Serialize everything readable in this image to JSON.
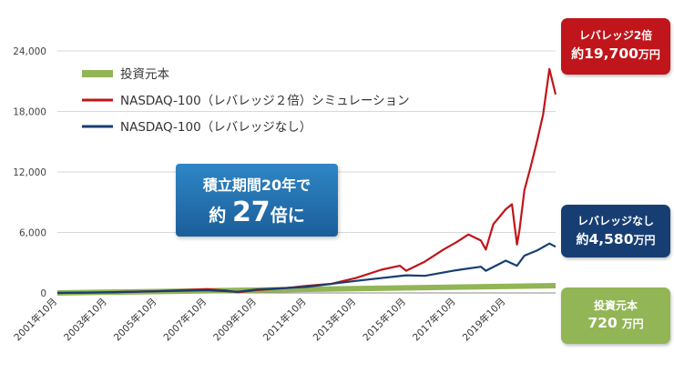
{
  "chart_data": {
    "type": "line",
    "title": "",
    "xlabel": "",
    "ylabel": "",
    "ylim": [
      0,
      24000
    ],
    "yticks": [
      0,
      6000,
      12000,
      18000,
      24000
    ],
    "ytick_labels": [
      "0",
      "6,000",
      "12,000",
      "18,000",
      "24,000"
    ],
    "xticks": [
      2001.75,
      2003.75,
      2005.75,
      2007.75,
      2009.75,
      2011.75,
      2013.75,
      2015.75,
      2017.75,
      2019.75
    ],
    "xtick_labels": [
      "2001年10月",
      "2003年10月",
      "2005年10月",
      "2007年10月",
      "2009年10月",
      "2011年10月",
      "2013年10月",
      "2015年10月",
      "2017年10月",
      "2019年10月"
    ],
    "xlim": [
      2001.75,
      2021.75
    ],
    "grid": true,
    "legend": "top-left",
    "series": [
      {
        "name": "投資元本",
        "color": "#92b555",
        "x": [
          2001.75,
          2021.75
        ],
        "values": [
          0,
          720
        ]
      },
      {
        "name": "NASDAQ-100（レバレッジ２倍）シミュレーション",
        "color": "#c0151b",
        "x": [
          2001.75,
          2003.75,
          2005.75,
          2007.0,
          2007.75,
          2008.5,
          2009.0,
          2009.75,
          2011.0,
          2011.75,
          2012.75,
          2013.75,
          2014.75,
          2015.5,
          2015.75,
          2016.5,
          2017.25,
          2017.75,
          2018.25,
          2018.75,
          2018.95,
          2019.25,
          2019.75,
          2020.0,
          2020.2,
          2020.3,
          2020.5,
          2020.75,
          2021.0,
          2021.25,
          2021.5,
          2021.75
        ],
        "values": [
          0,
          50,
          180,
          300,
          380,
          250,
          60,
          280,
          500,
          700,
          900,
          1500,
          2300,
          2700,
          2200,
          3100,
          4300,
          5000,
          5800,
          5200,
          4300,
          6800,
          8300,
          8800,
          4800,
          6200,
          10200,
          12500,
          15000,
          17700,
          22200,
          19700
        ]
      },
      {
        "name": "NASDAQ-100（レバレッジなし）",
        "color": "#173e73",
        "x": [
          2001.75,
          2003.75,
          2005.75,
          2007.75,
          2009.0,
          2009.75,
          2011.75,
          2013.75,
          2015.75,
          2016.5,
          2017.75,
          2018.75,
          2018.95,
          2019.75,
          2020.2,
          2020.5,
          2021.0,
          2021.5,
          2021.75
        ],
        "values": [
          0,
          60,
          160,
          270,
          120,
          340,
          600,
          1200,
          1750,
          1700,
          2250,
          2600,
          2200,
          3200,
          2700,
          3700,
          4200,
          4900,
          4580
        ]
      }
    ],
    "annotations": {
      "lev2_label": "レバレッジ2倍",
      "lev2_prefix": "約",
      "lev2_value": "19,700",
      "lev2_unit": "万円",
      "nolev_label": "レバレッジなし",
      "nolev_prefix": "約",
      "nolev_value": "4,580",
      "nolev_unit": "万円",
      "principal_label": "投資元本",
      "principal_value": "720",
      "principal_unit": "万円",
      "summary_line1": "積立期間20年で",
      "summary_prefix": "約",
      "summary_number": "27",
      "summary_suffix": "倍に"
    }
  }
}
